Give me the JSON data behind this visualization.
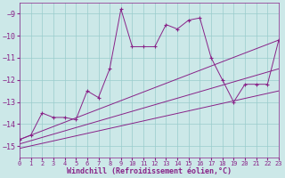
{
  "xlabel": "Windchill (Refroidissement éolien,°C)",
  "xlim": [
    0,
    23
  ],
  "ylim": [
    -15.5,
    -8.5
  ],
  "yticks": [
    -9,
    -10,
    -11,
    -12,
    -13,
    -14,
    -15
  ],
  "xticks": [
    0,
    1,
    2,
    3,
    4,
    5,
    6,
    7,
    8,
    9,
    10,
    11,
    12,
    13,
    14,
    15,
    16,
    17,
    18,
    19,
    20,
    21,
    22,
    23
  ],
  "bg_color": "#cce8e8",
  "line_color": "#882288",
  "grid_color": "#99cccc",
  "series1_x": [
    0,
    1,
    2,
    3,
    4,
    5,
    6,
    7,
    8,
    9,
    10,
    11,
    12,
    13,
    14,
    15,
    16,
    17,
    18,
    19,
    20,
    21,
    22,
    23
  ],
  "series1_y": [
    -14.7,
    -14.5,
    -13.5,
    -13.7,
    -13.7,
    -13.8,
    -12.5,
    -12.8,
    -11.5,
    -8.8,
    -10.5,
    -10.5,
    -10.5,
    -9.5,
    -9.7,
    -9.3,
    -9.2,
    -11.0,
    -12.0,
    -13.0,
    -12.2,
    -12.2,
    -12.2,
    -10.2
  ],
  "series2_x": [
    0,
    23
  ],
  "series2_y": [
    -14.7,
    -10.2
  ],
  "series3_x": [
    0,
    23
  ],
  "series3_y": [
    -14.9,
    -11.5
  ],
  "series4_x": [
    0,
    23
  ],
  "series4_y": [
    -15.1,
    -12.5
  ]
}
